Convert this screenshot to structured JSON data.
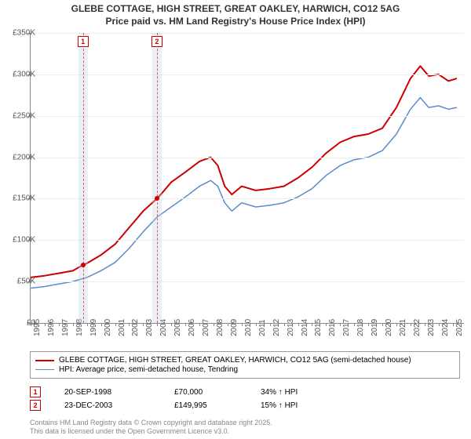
{
  "title": {
    "line1": "GLEBE COTTAGE, HIGH STREET, GREAT OAKLEY, HARWICH, CO12 5AG",
    "line2": "Price paid vs. HM Land Registry's House Price Index (HPI)"
  },
  "chart": {
    "type": "line",
    "background_color": "#ffffff",
    "grid_color": "#eeeeee",
    "axis_color": "#888888",
    "x": {
      "min": 1995,
      "max": 2025.8,
      "ticks": [
        1995,
        1996,
        1997,
        1998,
        1999,
        2000,
        2001,
        2002,
        2003,
        2004,
        2005,
        2006,
        2007,
        2008,
        2009,
        2010,
        2011,
        2012,
        2013,
        2014,
        2015,
        2016,
        2017,
        2018,
        2019,
        2020,
        2021,
        2022,
        2023,
        2024,
        2025
      ]
    },
    "y": {
      "min": 0,
      "max": 350000,
      "ticks": [
        0,
        50000,
        100000,
        150000,
        200000,
        250000,
        300000,
        350000
      ],
      "tick_labels": [
        "£0",
        "£50K",
        "£100K",
        "£150K",
        "£200K",
        "£250K",
        "£300K",
        "£350K"
      ]
    },
    "series": [
      {
        "name": "property",
        "label": "GLEBE COTTAGE, HIGH STREET, GREAT OAKLEY, HARWICH, CO12 5AG (semi-detached house)",
        "color": "#cc0000",
        "line_width": 2,
        "points": [
          [
            1995,
            55000
          ],
          [
            1996,
            57000
          ],
          [
            1997,
            60000
          ],
          [
            1998,
            63000
          ],
          [
            1998.72,
            70000
          ],
          [
            1999,
            72000
          ],
          [
            2000,
            82000
          ],
          [
            2001,
            95000
          ],
          [
            2002,
            115000
          ],
          [
            2003,
            135000
          ],
          [
            2003.98,
            149995
          ],
          [
            2004.5,
            160000
          ],
          [
            2005,
            170000
          ],
          [
            2006,
            182000
          ],
          [
            2007,
            195000
          ],
          [
            2007.8,
            200000
          ],
          [
            2008.3,
            190000
          ],
          [
            2008.8,
            165000
          ],
          [
            2009.3,
            155000
          ],
          [
            2010,
            165000
          ],
          [
            2011,
            160000
          ],
          [
            2012,
            162000
          ],
          [
            2013,
            165000
          ],
          [
            2014,
            175000
          ],
          [
            2015,
            188000
          ],
          [
            2016,
            205000
          ],
          [
            2017,
            218000
          ],
          [
            2018,
            225000
          ],
          [
            2019,
            228000
          ],
          [
            2020,
            235000
          ],
          [
            2021,
            260000
          ],
          [
            2022,
            295000
          ],
          [
            2022.7,
            310000
          ],
          [
            2023.3,
            298000
          ],
          [
            2024,
            300000
          ],
          [
            2024.7,
            292000
          ],
          [
            2025.3,
            295000
          ]
        ]
      },
      {
        "name": "hpi",
        "label": "HPI: Average price, semi-detached house, Tendring",
        "color": "#5b8bc9",
        "line_width": 1.5,
        "points": [
          [
            1995,
            42000
          ],
          [
            1996,
            44000
          ],
          [
            1997,
            47000
          ],
          [
            1998,
            50000
          ],
          [
            1999,
            55000
          ],
          [
            2000,
            63000
          ],
          [
            2001,
            73000
          ],
          [
            2002,
            90000
          ],
          [
            2003,
            110000
          ],
          [
            2004,
            128000
          ],
          [
            2005,
            140000
          ],
          [
            2006,
            152000
          ],
          [
            2007,
            165000
          ],
          [
            2007.8,
            172000
          ],
          [
            2008.3,
            165000
          ],
          [
            2008.8,
            145000
          ],
          [
            2009.3,
            135000
          ],
          [
            2010,
            145000
          ],
          [
            2011,
            140000
          ],
          [
            2012,
            142000
          ],
          [
            2013,
            145000
          ],
          [
            2014,
            152000
          ],
          [
            2015,
            162000
          ],
          [
            2016,
            178000
          ],
          [
            2017,
            190000
          ],
          [
            2018,
            197000
          ],
          [
            2019,
            200000
          ],
          [
            2020,
            208000
          ],
          [
            2021,
            228000
          ],
          [
            2022,
            258000
          ],
          [
            2022.7,
            272000
          ],
          [
            2023.3,
            260000
          ],
          [
            2024,
            262000
          ],
          [
            2024.7,
            258000
          ],
          [
            2025.3,
            260000
          ]
        ]
      }
    ],
    "sale_markers": [
      {
        "id": "1",
        "x": 1998.72,
        "y": 70000,
        "band_color": "rgba(200,210,225,0.35)",
        "dash_color": "rgba(204,0,0,0.6)"
      },
      {
        "id": "2",
        "x": 2003.98,
        "y": 149995,
        "band_color": "rgba(200,210,225,0.35)",
        "dash_color": "rgba(204,0,0,0.6)"
      }
    ]
  },
  "legend": {
    "items": [
      {
        "color": "#cc0000",
        "width": 2,
        "label_path": "chart.series.0.label"
      },
      {
        "color": "#5b8bc9",
        "width": 1.5,
        "label_path": "chart.series.1.label"
      }
    ]
  },
  "sales": [
    {
      "marker": "1",
      "date": "20-SEP-1998",
      "price": "£70,000",
      "pct": "34% ↑ HPI"
    },
    {
      "marker": "2",
      "date": "23-DEC-2003",
      "price": "£149,995",
      "pct": "15% ↑ HPI"
    }
  ],
  "attribution": {
    "line1": "Contains HM Land Registry data © Crown copyright and database right 2025.",
    "line2": "This data is licensed under the Open Government Licence v3.0."
  }
}
